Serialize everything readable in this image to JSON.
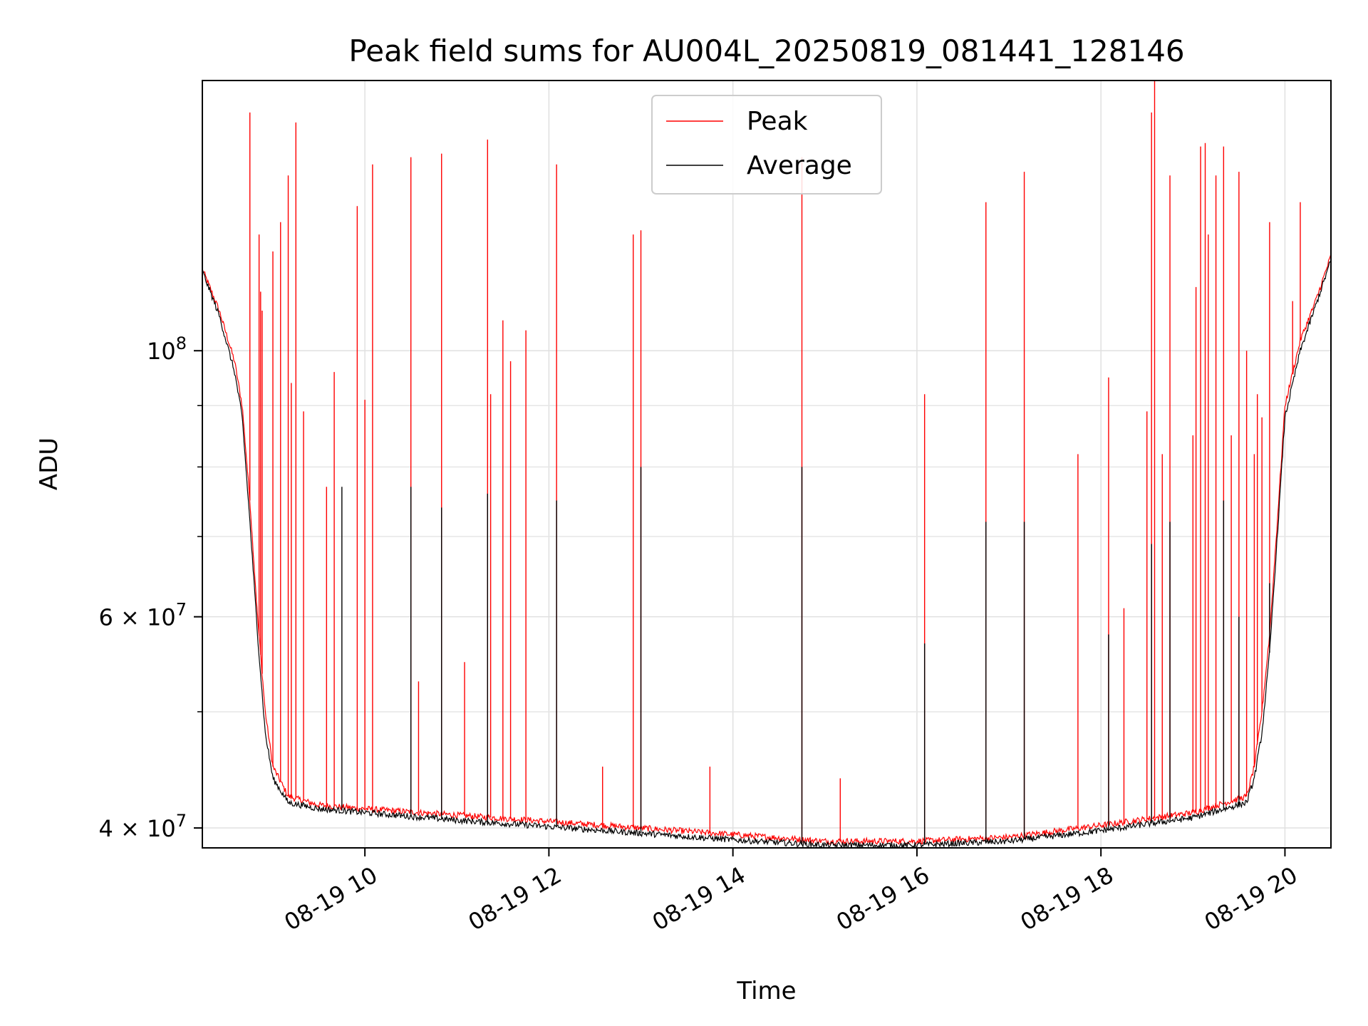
{
  "chart_data": {
    "type": "line",
    "title": "Peak field sums for AU004L_20250819_081441_128146",
    "xlabel": "Time",
    "ylabel": "ADU",
    "xscale": "time",
    "yscale": "log",
    "xlim": [
      "2025-08-19 08:14",
      "2025-08-19 20:30"
    ],
    "ylim": [
      38500000,
      168000000
    ],
    "x_ticks": [
      {
        "value": "2025-08-19 10:00",
        "label": "08-19 10"
      },
      {
        "value": "2025-08-19 12:00",
        "label": "08-19 12"
      },
      {
        "value": "2025-08-19 14:00",
        "label": "08-19 14"
      },
      {
        "value": "2025-08-19 16:00",
        "label": "08-19 16"
      },
      {
        "value": "2025-08-19 18:00",
        "label": "08-19 18"
      },
      {
        "value": "2025-08-19 20:00",
        "label": "08-19 20"
      }
    ],
    "y_ticks": [
      {
        "value": 40000000,
        "label": "4 × 10",
        "exp": "7"
      },
      {
        "value": 60000000,
        "label": "6 × 10",
        "exp": "7"
      },
      {
        "value": 100000000,
        "label": "10",
        "exp": "8"
      }
    ],
    "y_minor_ticks": [
      50000000,
      70000000,
      80000000,
      90000000
    ],
    "grid": true,
    "legend": {
      "placement": "top-center"
    },
    "series": [
      {
        "name": "Peak",
        "color": "#ff0000",
        "baseline": [
          [
            "2025-08-19 08:14",
            117000000
          ],
          [
            "2025-08-19 08:25",
            108000000
          ],
          [
            "2025-08-19 08:35",
            98000000
          ],
          [
            "2025-08-19 08:40",
            90000000
          ],
          [
            "2025-08-19 08:45",
            75000000
          ],
          [
            "2025-08-19 08:50",
            60000000
          ],
          [
            "2025-08-19 08:55",
            50000000
          ],
          [
            "2025-08-19 09:00",
            45000000
          ],
          [
            "2025-08-19 09:10",
            42500000
          ],
          [
            "2025-08-19 09:30",
            41800000
          ],
          [
            "2025-08-19 10:00",
            41500000
          ],
          [
            "2025-08-19 11:00",
            41000000
          ],
          [
            "2025-08-19 12:00",
            40500000
          ],
          [
            "2025-08-19 13:00",
            40000000
          ],
          [
            "2025-08-19 14:00",
            39500000
          ],
          [
            "2025-08-19 15:00",
            39000000
          ],
          [
            "2025-08-19 16:00",
            39000000
          ],
          [
            "2025-08-19 17:00",
            39300000
          ],
          [
            "2025-08-19 18:00",
            40200000
          ],
          [
            "2025-08-19 19:00",
            41200000
          ],
          [
            "2025-08-19 19:35",
            42500000
          ],
          [
            "2025-08-19 19:40",
            45000000
          ],
          [
            "2025-08-19 19:45",
            50000000
          ],
          [
            "2025-08-19 19:50",
            58000000
          ],
          [
            "2025-08-19 19:55",
            72000000
          ],
          [
            "2025-08-19 20:00",
            90000000
          ],
          [
            "2025-08-19 20:10",
            102000000
          ],
          [
            "2025-08-19 20:20",
            110000000
          ],
          [
            "2025-08-19 20:30",
            120000000
          ]
        ],
        "spikes": [
          [
            "2025-08-19 08:45",
            158000000
          ],
          [
            "2025-08-19 08:51",
            125000000
          ],
          [
            "2025-08-19 08:52",
            112000000
          ],
          [
            "2025-08-19 08:53",
            108000000
          ],
          [
            "2025-08-19 09:00",
            121000000
          ],
          [
            "2025-08-19 09:05",
            128000000
          ],
          [
            "2025-08-19 09:10",
            140000000
          ],
          [
            "2025-08-19 09:12",
            94000000
          ],
          [
            "2025-08-19 09:15",
            155000000
          ],
          [
            "2025-08-19 09:20",
            89000000
          ],
          [
            "2025-08-19 09:35",
            77000000
          ],
          [
            "2025-08-19 09:40",
            96000000
          ],
          [
            "2025-08-19 09:55",
            132000000
          ],
          [
            "2025-08-19 10:00",
            91000000
          ],
          [
            "2025-08-19 10:05",
            143000000
          ],
          [
            "2025-08-19 10:30",
            145000000
          ],
          [
            "2025-08-19 10:35",
            53000000
          ],
          [
            "2025-08-19 10:50",
            146000000
          ],
          [
            "2025-08-19 11:05",
            55000000
          ],
          [
            "2025-08-19 11:20",
            150000000
          ],
          [
            "2025-08-19 11:22",
            92000000
          ],
          [
            "2025-08-19 11:30",
            106000000
          ],
          [
            "2025-08-19 11:35",
            98000000
          ],
          [
            "2025-08-19 11:45",
            104000000
          ],
          [
            "2025-08-19 12:05",
            143000000
          ],
          [
            "2025-08-19 12:35",
            45000000
          ],
          [
            "2025-08-19 12:55",
            125000000
          ],
          [
            "2025-08-19 13:00",
            126000000
          ],
          [
            "2025-08-19 13:45",
            45000000
          ],
          [
            "2025-08-19 14:45",
            145000000
          ],
          [
            "2025-08-19 15:10",
            44000000
          ],
          [
            "2025-08-19 16:05",
            92000000
          ],
          [
            "2025-08-19 16:45",
            133000000
          ],
          [
            "2025-08-19 17:10",
            141000000
          ],
          [
            "2025-08-19 17:45",
            82000000
          ],
          [
            "2025-08-19 18:05",
            95000000
          ],
          [
            "2025-08-19 18:15",
            61000000
          ],
          [
            "2025-08-19 18:30",
            89000000
          ],
          [
            "2025-08-19 18:33",
            158000000
          ],
          [
            "2025-08-19 18:35",
            168000000
          ],
          [
            "2025-08-19 18:40",
            82000000
          ],
          [
            "2025-08-19 18:45",
            140000000
          ],
          [
            "2025-08-19 19:00",
            85000000
          ],
          [
            "2025-08-19 19:02",
            113000000
          ],
          [
            "2025-08-19 19:05",
            148000000
          ],
          [
            "2025-08-19 19:08",
            149000000
          ],
          [
            "2025-08-19 19:10",
            125000000
          ],
          [
            "2025-08-19 19:15",
            140000000
          ],
          [
            "2025-08-19 19:20",
            148000000
          ],
          [
            "2025-08-19 19:25",
            85000000
          ],
          [
            "2025-08-19 19:30",
            141000000
          ],
          [
            "2025-08-19 19:35",
            100000000
          ],
          [
            "2025-08-19 19:40",
            82000000
          ],
          [
            "2025-08-19 19:42",
            92000000
          ],
          [
            "2025-08-19 19:45",
            88000000
          ],
          [
            "2025-08-19 19:50",
            128000000
          ],
          [
            "2025-08-19 20:05",
            110000000
          ],
          [
            "2025-08-19 20:10",
            133000000
          ]
        ]
      },
      {
        "name": "Average",
        "color": "#000000",
        "baseline": [
          [
            "2025-08-19 08:14",
            116500000
          ],
          [
            "2025-08-19 08:25",
            107000000
          ],
          [
            "2025-08-19 08:35",
            96000000
          ],
          [
            "2025-08-19 08:40",
            88000000
          ],
          [
            "2025-08-19 08:45",
            72000000
          ],
          [
            "2025-08-19 08:50",
            58000000
          ],
          [
            "2025-08-19 08:55",
            48000000
          ],
          [
            "2025-08-19 09:00",
            44000000
          ],
          [
            "2025-08-19 09:10",
            42000000
          ],
          [
            "2025-08-19 09:30",
            41500000
          ],
          [
            "2025-08-19 10:00",
            41200000
          ],
          [
            "2025-08-19 11:00",
            40600000
          ],
          [
            "2025-08-19 12:00",
            40100000
          ],
          [
            "2025-08-19 13:00",
            39600000
          ],
          [
            "2025-08-19 14:00",
            39100000
          ],
          [
            "2025-08-19 15:00",
            38700000
          ],
          [
            "2025-08-19 16:00",
            38700000
          ],
          [
            "2025-08-19 17:00",
            39000000
          ],
          [
            "2025-08-19 18:00",
            39800000
          ],
          [
            "2025-08-19 19:00",
            40800000
          ],
          [
            "2025-08-19 19:35",
            42000000
          ],
          [
            "2025-08-19 19:40",
            44000000
          ],
          [
            "2025-08-19 19:45",
            48000000
          ],
          [
            "2025-08-19 19:50",
            56000000
          ],
          [
            "2025-08-19 19:55",
            70000000
          ],
          [
            "2025-08-19 20:00",
            88000000
          ],
          [
            "2025-08-19 20:10",
            100000000
          ],
          [
            "2025-08-19 20:20",
            109000000
          ],
          [
            "2025-08-19 20:30",
            119000000
          ]
        ],
        "spikes": [
          [
            "2025-08-19 09:45",
            77000000
          ],
          [
            "2025-08-19 10:30",
            77000000
          ],
          [
            "2025-08-19 10:50",
            74000000
          ],
          [
            "2025-08-19 11:20",
            76000000
          ],
          [
            "2025-08-19 12:05",
            75000000
          ],
          [
            "2025-08-19 13:00",
            80000000
          ],
          [
            "2025-08-19 14:45",
            80000000
          ],
          [
            "2025-08-19 16:05",
            57000000
          ],
          [
            "2025-08-19 16:45",
            72000000
          ],
          [
            "2025-08-19 17:10",
            72000000
          ],
          [
            "2025-08-19 18:05",
            58000000
          ],
          [
            "2025-08-19 18:33",
            69000000
          ],
          [
            "2025-08-19 18:45",
            72000000
          ],
          [
            "2025-08-19 19:20",
            75000000
          ],
          [
            "2025-08-19 19:30",
            60000000
          ],
          [
            "2025-08-19 19:50",
            64000000
          ]
        ]
      }
    ]
  }
}
